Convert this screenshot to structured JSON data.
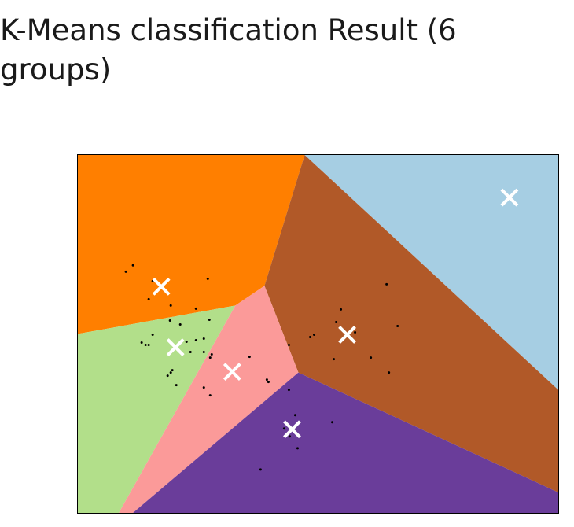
{
  "header": {
    "title": "K-Means classification Result (6 groups)"
  },
  "chart_data": {
    "type": "scatter",
    "title": "K-Means classification Result (6 groups)",
    "xlabel": "",
    "ylabel": "",
    "xlim": [
      0,
      610
    ],
    "ylim": [
      0,
      454
    ],
    "axes_ticks": "none",
    "grid": false,
    "legend": "none",
    "region_colors": {
      "orange": "#ff7f00",
      "light_blue": "#a6cee3",
      "brown": "#b15928",
      "green": "#b2df8a",
      "pink": "#fb9a99",
      "purple": "#6a3d9a"
    },
    "centroid_color": "#ffffff",
    "point_color": "#000000",
    "regions": [
      {
        "name": "orange",
        "color": "#ff7f00",
        "polygon": [
          [
            0,
            0
          ],
          [
            288,
            0
          ],
          [
            237,
            166
          ],
          [
            200,
            191
          ],
          [
            0,
            227
          ]
        ]
      },
      {
        "name": "light-blue",
        "color": "#a6cee3",
        "polygon": [
          [
            288,
            0
          ],
          [
            610,
            0
          ],
          [
            610,
            298
          ]
        ]
      },
      {
        "name": "brown",
        "color": "#b15928",
        "polygon": [
          [
            288,
            0
          ],
          [
            610,
            298
          ],
          [
            610,
            428
          ],
          [
            280,
            276
          ],
          [
            237,
            166
          ]
        ]
      },
      {
        "name": "green",
        "color": "#b2df8a",
        "polygon": [
          [
            0,
            227
          ],
          [
            200,
            191
          ],
          [
            52,
            454
          ],
          [
            0,
            454
          ]
        ]
      },
      {
        "name": "pink",
        "color": "#fb9a99",
        "polygon": [
          [
            200,
            191
          ],
          [
            237,
            166
          ],
          [
            280,
            276
          ],
          [
            70,
            454
          ],
          [
            52,
            454
          ]
        ]
      },
      {
        "name": "purple",
        "color": "#6a3d9a",
        "polygon": [
          [
            280,
            276
          ],
          [
            610,
            428
          ],
          [
            610,
            454
          ],
          [
            70,
            454
          ]
        ]
      }
    ],
    "centroids": [
      {
        "x": 106,
        "y": 167
      },
      {
        "x": 548,
        "y": 54
      },
      {
        "x": 124,
        "y": 244
      },
      {
        "x": 196,
        "y": 275
      },
      {
        "x": 342,
        "y": 228
      },
      {
        "x": 272,
        "y": 348
      }
    ],
    "points": [
      {
        "x": 61,
        "y": 148
      },
      {
        "x": 70,
        "y": 140
      },
      {
        "x": 95,
        "y": 160
      },
      {
        "x": 90,
        "y": 183
      },
      {
        "x": 165,
        "y": 157
      },
      {
        "x": 118,
        "y": 191
      },
      {
        "x": 150,
        "y": 195
      },
      {
        "x": 117,
        "y": 210
      },
      {
        "x": 130,
        "y": 215
      },
      {
        "x": 167,
        "y": 209
      },
      {
        "x": 95,
        "y": 228
      },
      {
        "x": 81,
        "y": 238
      },
      {
        "x": 86,
        "y": 241
      },
      {
        "x": 90,
        "y": 241
      },
      {
        "x": 138,
        "y": 237
      },
      {
        "x": 150,
        "y": 235
      },
      {
        "x": 160,
        "y": 233
      },
      {
        "x": 143,
        "y": 250
      },
      {
        "x": 160,
        "y": 250
      },
      {
        "x": 170,
        "y": 253
      },
      {
        "x": 168,
        "y": 257
      },
      {
        "x": 120,
        "y": 273
      },
      {
        "x": 118,
        "y": 276
      },
      {
        "x": 114,
        "y": 280
      },
      {
        "x": 125,
        "y": 292
      },
      {
        "x": 160,
        "y": 295
      },
      {
        "x": 168,
        "y": 305
      },
      {
        "x": 218,
        "y": 256
      },
      {
        "x": 240,
        "y": 285
      },
      {
        "x": 242,
        "y": 288
      },
      {
        "x": 268,
        "y": 241
      },
      {
        "x": 295,
        "y": 231
      },
      {
        "x": 300,
        "y": 228
      },
      {
        "x": 328,
        "y": 212
      },
      {
        "x": 334,
        "y": 196
      },
      {
        "x": 352,
        "y": 225
      },
      {
        "x": 392,
        "y": 164
      },
      {
        "x": 406,
        "y": 217
      },
      {
        "x": 325,
        "y": 259
      },
      {
        "x": 372,
        "y": 257
      },
      {
        "x": 395,
        "y": 276
      },
      {
        "x": 268,
        "y": 298
      },
      {
        "x": 276,
        "y": 330
      },
      {
        "x": 323,
        "y": 339
      },
      {
        "x": 262,
        "y": 347
      },
      {
        "x": 269,
        "y": 357
      },
      {
        "x": 279,
        "y": 372
      },
      {
        "x": 232,
        "y": 399
      }
    ]
  }
}
